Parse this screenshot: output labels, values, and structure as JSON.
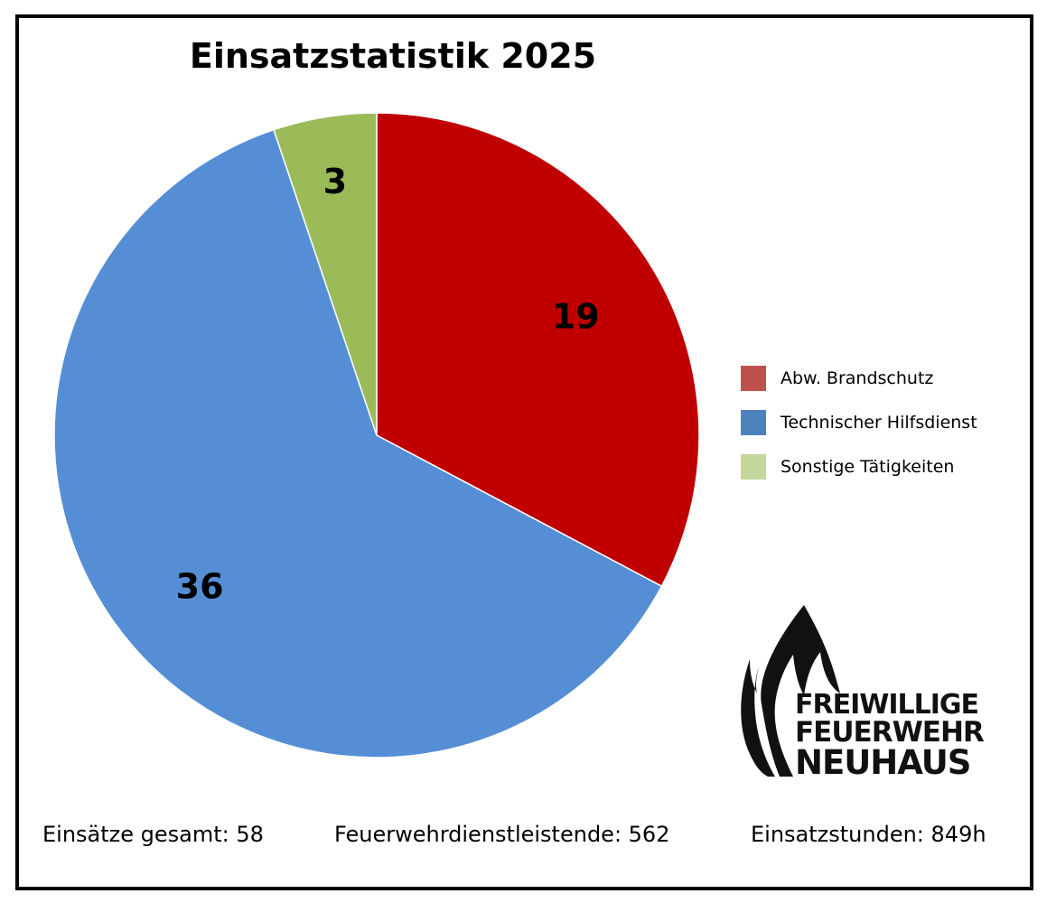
{
  "title": "Einsatzstatistik 2025",
  "chart_data": {
    "type": "pie",
    "title": "Einsatzstatistik 2025",
    "legend_position": "right",
    "slices": [
      {
        "label": "Abw. Brandschutz",
        "value": 19,
        "color": "#C00000",
        "legend_color": "#C0504D"
      },
      {
        "label": "Technischer Hilfsdienst",
        "value": 36,
        "color": "#558ED5",
        "legend_color": "#4F81BD"
      },
      {
        "label": "Sonstige Tätigkeiten",
        "value": 3,
        "color": "#9BBB59",
        "legend_color": "#C3D69B"
      }
    ]
  },
  "footer": {
    "einsaetze": "Einsätze gesamt: 58",
    "dienstleistende": "Feuerwehrdienstleistende: 562",
    "stunden": "Einsatzstunden: 849h"
  },
  "logo": {
    "line1": "FREIWILLIGE",
    "line2": "FEUERWEHR",
    "line3": "NEUHAUS",
    "icon": "flame-icon"
  }
}
